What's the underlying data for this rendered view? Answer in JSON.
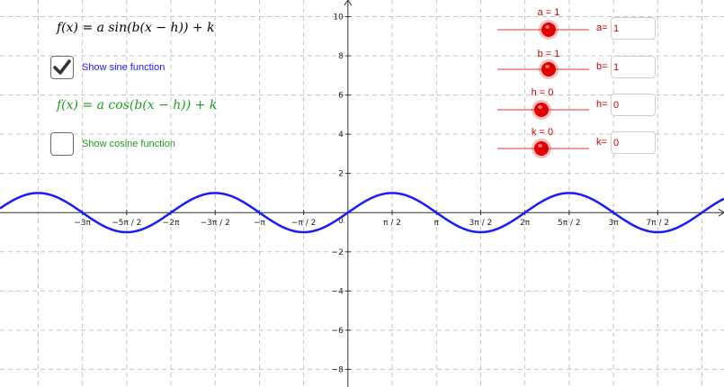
{
  "formulas": {
    "sine": "f(x) = a  sin(b(x − h)) + k",
    "cosine": "f(x) = a  cos(b(x − h)) + k"
  },
  "checkboxes": {
    "sine": {
      "label": "Show sine function",
      "checked": true
    },
    "cosine": {
      "label": "Show cosine function",
      "checked": false
    }
  },
  "sliders": [
    {
      "title": "a = 1",
      "input_label": "a=",
      "value": "1"
    },
    {
      "title": "b = 1",
      "input_label": "b=",
      "value": "1"
    },
    {
      "title": "h = 0",
      "input_label": "h=",
      "value": "0"
    },
    {
      "title": "k = 0",
      "input_label": "k=",
      "value": "0"
    }
  ],
  "graph": {
    "x_tick_labels": [
      "−3π",
      "−5π / 2",
      "−2π",
      "−3π / 2",
      "−π",
      "−π / 2",
      "π / 2",
      "π",
      "3π / 2",
      "2π",
      "5π / 2",
      "3π",
      "7π / 2"
    ],
    "x_tick_values": [
      -9.42478,
      -7.85398,
      -6.28319,
      -4.71239,
      -3.14159,
      -1.5708,
      1.5708,
      3.14159,
      4.71239,
      6.28319,
      7.85398,
      9.42478,
      10.99557
    ],
    "y_tick_labels": [
      "10",
      "8",
      "6",
      "4",
      "2",
      "−2",
      "−4",
      "−6",
      "−8"
    ],
    "y_tick_values": [
      10,
      8,
      6,
      4,
      2,
      -2,
      -4,
      -6,
      -8
    ],
    "origin_label": "0",
    "x_range": [
      -12.35,
      13.35
    ],
    "y_range": [
      -8.9,
      10.85
    ],
    "curve": {
      "function": "sin",
      "a": 1,
      "b": 1,
      "h": 0,
      "k": 0
    }
  },
  "colors": {
    "sine": "#1a1aff",
    "cosine": "#1a9e1a",
    "slider": "#cc0000",
    "grid": "#c4c4c4",
    "axis": "#333333"
  }
}
